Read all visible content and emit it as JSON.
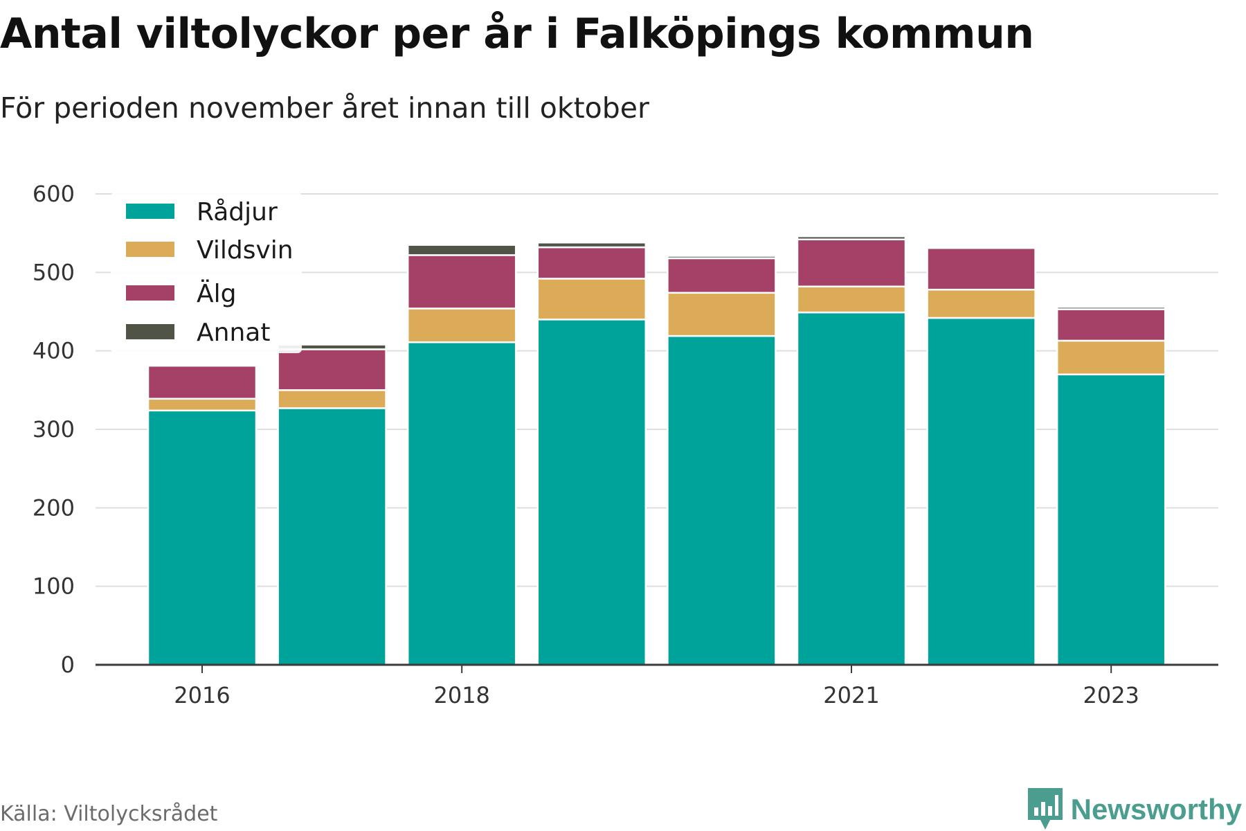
{
  "header": {
    "title": "Antal viltolyckor per år i Falköpings kommun",
    "subtitle": "För perioden november året innan till oktober"
  },
  "footer": {
    "source": "Källa: Viltolycksrådet",
    "brand": "Newsworthy",
    "brand_icon": "bar-chart-logo-icon"
  },
  "colors": {
    "Rådjur": "#00a39a",
    "Vildsvin": "#dcab58",
    "Älg": "#a54166",
    "Annat": "#4f5446",
    "grid": "#dedede",
    "axis": "#3a3a3a",
    "brand": "#4a9d8f"
  },
  "chart_data": {
    "type": "bar",
    "stacked": true,
    "categories": [
      2016,
      2017,
      2018,
      2019,
      2020,
      2021,
      2022,
      2023
    ],
    "x_tick_labels": [
      "2016",
      "2018",
      "2021",
      "2023"
    ],
    "series": [
      {
        "name": "Rådjur",
        "values": [
          324,
          327,
          411,
          440,
          419,
          449,
          442,
          370
        ]
      },
      {
        "name": "Vildsvin",
        "values": [
          15,
          23,
          43,
          52,
          55,
          33,
          36,
          43
        ]
      },
      {
        "name": "Älg",
        "values": [
          42,
          52,
          68,
          40,
          44,
          60,
          53,
          40
        ]
      },
      {
        "name": "Annat",
        "values": [
          0,
          6,
          13,
          6,
          3,
          4,
          0,
          3
        ]
      }
    ],
    "y_ticks": [
      0,
      100,
      200,
      300,
      400,
      500,
      600
    ],
    "ylim": [
      0,
      600
    ],
    "grid": true,
    "legend": "top-left"
  }
}
